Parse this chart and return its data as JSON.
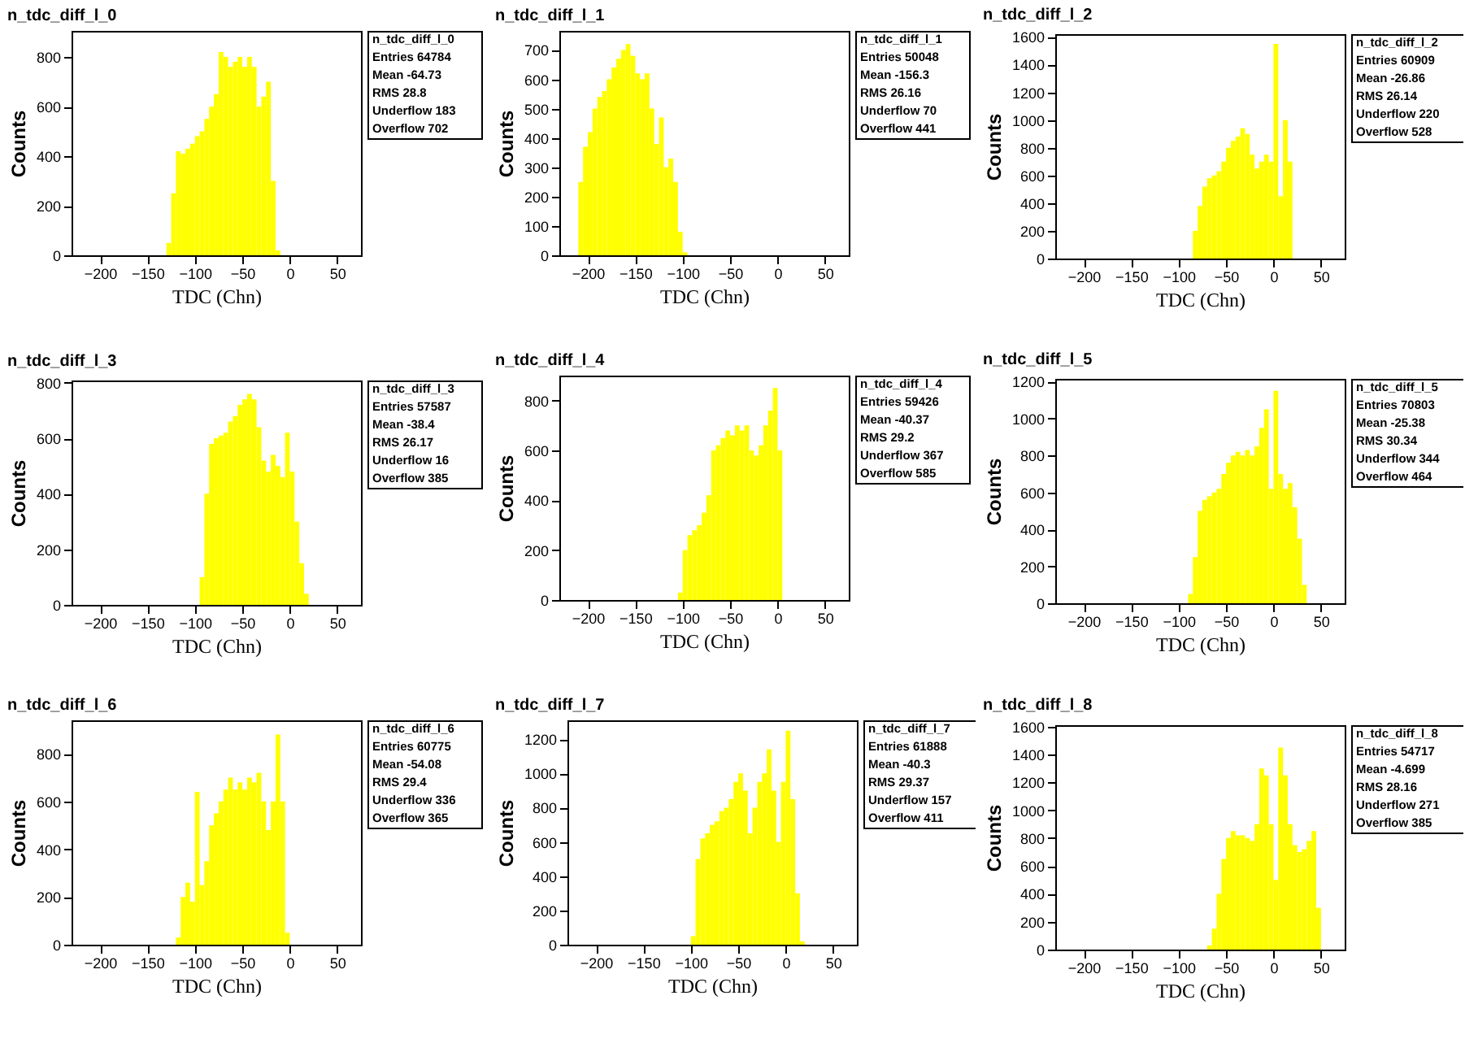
{
  "chart_data": [
    {
      "type": "histogram",
      "title": "n_tdc_diff_l_0",
      "xlabel": "TDC (Chn)",
      "ylabel": "Counts",
      "color": "#ffff00",
      "xlim": [
        -230,
        75
      ],
      "xticks": [
        -200,
        -150,
        -100,
        -50,
        0,
        50
      ],
      "ylim": [
        0,
        905
      ],
      "yticks": [
        0,
        200,
        400,
        600,
        800
      ],
      "grid": false,
      "bins": [
        -230,
        -225,
        -220,
        -215,
        -210,
        -205,
        -200,
        -195,
        -190,
        -185,
        -180,
        -175,
        -170,
        -165,
        -160,
        -155,
        -150,
        -145,
        -140,
        -135,
        -130,
        -125,
        -120,
        -115,
        -110,
        -105,
        -100,
        -95,
        -90,
        -85,
        -80,
        -75,
        -70,
        -65,
        -60,
        -55,
        -50,
        -45,
        -40,
        -35,
        -30,
        -25,
        -20,
        -15,
        -10,
        -5,
        0,
        5,
        10,
        15,
        20,
        25,
        30,
        35,
        40,
        45,
        50,
        55,
        60,
        65,
        70,
        75
      ],
      "values": [
        0,
        0,
        0,
        0,
        0,
        0,
        0,
        0,
        0,
        0,
        0,
        0,
        0,
        0,
        0,
        0,
        0,
        0,
        0,
        0,
        50,
        250,
        420,
        410,
        430,
        450,
        480,
        500,
        550,
        600,
        650,
        820,
        800,
        760,
        780,
        800,
        760,
        800,
        760,
        600,
        640,
        700,
        300,
        20,
        0,
        0,
        0,
        0,
        0,
        0,
        0,
        0,
        0,
        0,
        0,
        0,
        0,
        0,
        0,
        0,
        0
      ],
      "annotations": [
        "n_tdc_diff_l_0",
        "Entries 64784",
        "Mean -64.73",
        "RMS 28.8",
        "Underflow 183",
        "Overflow 702"
      ]
    },
    {
      "type": "histogram",
      "title": "n_tdc_diff_l_1",
      "xlabel": "TDC (Chn)",
      "ylabel": "Counts",
      "color": "#ffff00",
      "xlim": [
        -230,
        75
      ],
      "xticks": [
        -200,
        -150,
        -100,
        -50,
        0,
        50
      ],
      "ylim": [
        0,
        765
      ],
      "yticks": [
        0,
        100,
        200,
        300,
        400,
        500,
        600,
        700
      ],
      "grid": false,
      "bins": [
        -230,
        -225,
        -220,
        -215,
        -210,
        -205,
        -200,
        -195,
        -190,
        -185,
        -180,
        -175,
        -170,
        -165,
        -160,
        -155,
        -150,
        -145,
        -140,
        -135,
        -130,
        -125,
        -120,
        -115,
        -110,
        -105,
        -100,
        -95,
        -90,
        -85,
        -80,
        -75,
        -70,
        -65,
        -60,
        -55,
        -50,
        -45,
        -40,
        -35,
        -30,
        -25,
        -20,
        -15,
        -10,
        -5,
        0,
        5,
        10,
        15,
        20,
        25,
        30,
        35,
        40,
        45,
        50,
        55,
        60,
        65,
        70,
        75
      ],
      "values": [
        0,
        0,
        0,
        0,
        250,
        370,
        420,
        500,
        540,
        560,
        600,
        640,
        670,
        700,
        720,
        680,
        620,
        600,
        620,
        500,
        380,
        470,
        300,
        330,
        250,
        80,
        10,
        0,
        0,
        0,
        0,
        0,
        0,
        0,
        0,
        0,
        0,
        0,
        0,
        0,
        0,
        0,
        0,
        0,
        0,
        0,
        0,
        0,
        0,
        0,
        0,
        0,
        0,
        0,
        0,
        0,
        0,
        0,
        0,
        0,
        0
      ],
      "annotations": [
        "n_tdc_diff_l_1",
        "Entries 50048",
        "Mean -156.3",
        "RMS 26.16",
        "Underflow 70",
        "Overflow 441"
      ]
    },
    {
      "type": "histogram",
      "title": "n_tdc_diff_l_2",
      "xlabel": "TDC (Chn)",
      "ylabel": "Counts",
      "color": "#ffff00",
      "xlim": [
        -230,
        75
      ],
      "xticks": [
        -200,
        -150,
        -100,
        -50,
        0,
        50
      ],
      "ylim": [
        0,
        1620
      ],
      "yticks": [
        0,
        200,
        400,
        600,
        800,
        1000,
        1200,
        1400,
        1600
      ],
      "grid": false,
      "bins": [
        -230,
        -225,
        -220,
        -215,
        -210,
        -205,
        -200,
        -195,
        -190,
        -185,
        -180,
        -175,
        -170,
        -165,
        -160,
        -155,
        -150,
        -145,
        -140,
        -135,
        -130,
        -125,
        -120,
        -115,
        -110,
        -105,
        -100,
        -95,
        -90,
        -85,
        -80,
        -75,
        -70,
        -65,
        -60,
        -55,
        -50,
        -45,
        -40,
        -35,
        -30,
        -25,
        -20,
        -15,
        -10,
        -5,
        0,
        5,
        10,
        15,
        20,
        25,
        30,
        35,
        40,
        45,
        50,
        55,
        60,
        65,
        70,
        75
      ],
      "values": [
        0,
        0,
        0,
        0,
        0,
        0,
        0,
        0,
        0,
        0,
        0,
        0,
        0,
        0,
        0,
        0,
        0,
        0,
        0,
        0,
        0,
        0,
        0,
        0,
        0,
        0,
        0,
        0,
        0,
        200,
        380,
        520,
        580,
        600,
        630,
        700,
        800,
        850,
        880,
        940,
        900,
        750,
        650,
        700,
        750,
        700,
        1550,
        450,
        1000,
        700,
        0,
        0,
        0,
        0,
        0,
        0,
        0,
        0,
        0,
        0,
        0
      ],
      "annotations": [
        "n_tdc_diff_l_2",
        "Entries 60909",
        "Mean -26.86",
        "RMS 26.14",
        "Underflow 220",
        "Overflow 528"
      ]
    },
    {
      "type": "histogram",
      "title": "n_tdc_diff_l_3",
      "xlabel": "TDC (Chn)",
      "ylabel": "Counts",
      "color": "#ffff00",
      "xlim": [
        -230,
        75
      ],
      "xticks": [
        -200,
        -150,
        -100,
        -50,
        0,
        50
      ],
      "ylim": [
        0,
        808
      ],
      "yticks": [
        0,
        200,
        400,
        600,
        800
      ],
      "grid": false,
      "bins": [
        -230,
        -225,
        -220,
        -215,
        -210,
        -205,
        -200,
        -195,
        -190,
        -185,
        -180,
        -175,
        -170,
        -165,
        -160,
        -155,
        -150,
        -145,
        -140,
        -135,
        -130,
        -125,
        -120,
        -115,
        -110,
        -105,
        -100,
        -95,
        -90,
        -85,
        -80,
        -75,
        -70,
        -65,
        -60,
        -55,
        -50,
        -45,
        -40,
        -35,
        -30,
        -25,
        -20,
        -15,
        -10,
        -5,
        0,
        5,
        10,
        15,
        20,
        25,
        30,
        35,
        40,
        45,
        50,
        55,
        60,
        65,
        70,
        75
      ],
      "values": [
        0,
        0,
        0,
        0,
        0,
        0,
        0,
        0,
        0,
        0,
        0,
        0,
        0,
        0,
        0,
        0,
        0,
        0,
        0,
        0,
        0,
        0,
        0,
        0,
        0,
        0,
        0,
        100,
        400,
        580,
        600,
        610,
        620,
        660,
        680,
        720,
        740,
        760,
        740,
        640,
        520,
        480,
        540,
        500,
        460,
        620,
        480,
        300,
        150,
        40,
        0,
        0,
        0,
        0,
        0,
        0,
        0,
        0,
        0,
        0,
        0
      ],
      "annotations": [
        "n_tdc_diff_l_3",
        "Entries 57587",
        "Mean -38.4",
        "RMS 26.17",
        "Underflow 16",
        "Overflow 385"
      ]
    },
    {
      "type": "histogram",
      "title": "n_tdc_diff_l_4",
      "xlabel": "TDC (Chn)",
      "ylabel": "Counts",
      "color": "#ffff00",
      "xlim": [
        -230,
        75
      ],
      "xticks": [
        -200,
        -150,
        -100,
        -50,
        0,
        50
      ],
      "ylim": [
        0,
        900
      ],
      "yticks": [
        0,
        200,
        400,
        600,
        800
      ],
      "grid": false,
      "bins": [
        -230,
        -225,
        -220,
        -215,
        -210,
        -205,
        -200,
        -195,
        -190,
        -185,
        -180,
        -175,
        -170,
        -165,
        -160,
        -155,
        -150,
        -145,
        -140,
        -135,
        -130,
        -125,
        -120,
        -115,
        -110,
        -105,
        -100,
        -95,
        -90,
        -85,
        -80,
        -75,
        -70,
        -65,
        -60,
        -55,
        -50,
        -45,
        -40,
        -35,
        -30,
        -25,
        -20,
        -15,
        -10,
        -5,
        0,
        5,
        10,
        15,
        20,
        25,
        30,
        35,
        40,
        45,
        50,
        55,
        60,
        65,
        70,
        75
      ],
      "values": [
        0,
        0,
        0,
        0,
        0,
        0,
        0,
        0,
        0,
        0,
        0,
        0,
        0,
        0,
        0,
        0,
        0,
        0,
        0,
        0,
        0,
        0,
        0,
        0,
        0,
        30,
        200,
        260,
        280,
        300,
        350,
        420,
        600,
        620,
        650,
        680,
        660,
        700,
        680,
        700,
        600,
        580,
        620,
        700,
        760,
        850,
        600,
        0,
        0,
        0,
        0,
        0,
        0,
        0,
        0,
        0,
        0,
        0,
        0,
        0,
        0
      ],
      "annotations": [
        "n_tdc_diff_l_4",
        "Entries 59426",
        "Mean -40.37",
        "RMS 29.2",
        "Underflow 367",
        "Overflow 585"
      ]
    },
    {
      "type": "histogram",
      "title": "n_tdc_diff_l_5",
      "xlabel": "TDC (Chn)",
      "ylabel": "Counts",
      "color": "#ffff00",
      "xlim": [
        -230,
        75
      ],
      "xticks": [
        -200,
        -150,
        -100,
        -50,
        0,
        50
      ],
      "ylim": [
        0,
        1215
      ],
      "yticks": [
        0,
        200,
        400,
        600,
        800,
        1000,
        1200
      ],
      "grid": false,
      "bins": [
        -230,
        -225,
        -220,
        -215,
        -210,
        -205,
        -200,
        -195,
        -190,
        -185,
        -180,
        -175,
        -170,
        -165,
        -160,
        -155,
        -150,
        -145,
        -140,
        -135,
        -130,
        -125,
        -120,
        -115,
        -110,
        -105,
        -100,
        -95,
        -90,
        -85,
        -80,
        -75,
        -70,
        -65,
        -60,
        -55,
        -50,
        -45,
        -40,
        -35,
        -30,
        -25,
        -20,
        -15,
        -10,
        -5,
        0,
        5,
        10,
        15,
        20,
        25,
        30,
        35,
        40,
        45,
        50,
        55,
        60,
        65,
        70,
        75
      ],
      "values": [
        0,
        0,
        0,
        0,
        0,
        0,
        0,
        0,
        0,
        0,
        0,
        0,
        0,
        0,
        0,
        0,
        0,
        0,
        0,
        0,
        0,
        0,
        0,
        0,
        0,
        0,
        0,
        0,
        50,
        250,
        500,
        560,
        580,
        600,
        620,
        700,
        760,
        800,
        820,
        800,
        830,
        800,
        850,
        950,
        1050,
        620,
        1150,
        700,
        620,
        650,
        520,
        350,
        100,
        0,
        0,
        0,
        0,
        0,
        0,
        0,
        0
      ],
      "annotations": [
        "n_tdc_diff_l_5",
        "Entries 70803",
        "Mean -25.38",
        "RMS 30.34",
        "Underflow 344",
        "Overflow 464"
      ]
    },
    {
      "type": "histogram",
      "title": "n_tdc_diff_l_6",
      "xlabel": "TDC (Chn)",
      "ylabel": "Counts",
      "color": "#ffff00",
      "xlim": [
        -230,
        75
      ],
      "xticks": [
        -200,
        -150,
        -100,
        -50,
        0,
        50
      ],
      "ylim": [
        0,
        940
      ],
      "yticks": [
        0,
        200,
        400,
        600,
        800
      ],
      "grid": false,
      "bins": [
        -230,
        -225,
        -220,
        -215,
        -210,
        -205,
        -200,
        -195,
        -190,
        -185,
        -180,
        -175,
        -170,
        -165,
        -160,
        -155,
        -150,
        -145,
        -140,
        -135,
        -130,
        -125,
        -120,
        -115,
        -110,
        -105,
        -100,
        -95,
        -90,
        -85,
        -80,
        -75,
        -70,
        -65,
        -60,
        -55,
        -50,
        -45,
        -40,
        -35,
        -30,
        -25,
        -20,
        -15,
        -10,
        -5,
        0,
        5,
        10,
        15,
        20,
        25,
        30,
        35,
        40,
        45,
        50,
        55,
        60,
        65,
        70,
        75
      ],
      "values": [
        0,
        0,
        0,
        0,
        0,
        0,
        0,
        0,
        0,
        0,
        0,
        0,
        0,
        0,
        0,
        0,
        0,
        0,
        0,
        0,
        0,
        0,
        30,
        200,
        260,
        180,
        640,
        250,
        350,
        500,
        550,
        600,
        650,
        700,
        650,
        680,
        650,
        700,
        680,
        720,
        600,
        480,
        600,
        880,
        600,
        50,
        0,
        0,
        0,
        0,
        0,
        0,
        0,
        0,
        0,
        0,
        0,
        0,
        0,
        0,
        0
      ],
      "annotations": [
        "n_tdc_diff_l_6",
        "Entries 60775",
        "Mean -54.08",
        "RMS 29.4",
        "Underflow 336",
        "Overflow 365"
      ]
    },
    {
      "type": "histogram",
      "title": "n_tdc_diff_l_7",
      "xlabel": "TDC (Chn)",
      "ylabel": "Counts",
      "color": "#ffff00",
      "xlim": [
        -230,
        75
      ],
      "xticks": [
        -200,
        -150,
        -100,
        -50,
        0,
        50
      ],
      "ylim": [
        0,
        1310
      ],
      "yticks": [
        0,
        200,
        400,
        600,
        800,
        1000,
        1200
      ],
      "grid": false,
      "bins": [
        -230,
        -225,
        -220,
        -215,
        -210,
        -205,
        -200,
        -195,
        -190,
        -185,
        -180,
        -175,
        -170,
        -165,
        -160,
        -155,
        -150,
        -145,
        -140,
        -135,
        -130,
        -125,
        -120,
        -115,
        -110,
        -105,
        -100,
        -95,
        -90,
        -85,
        -80,
        -75,
        -70,
        -65,
        -60,
        -55,
        -50,
        -45,
        -40,
        -35,
        -30,
        -25,
        -20,
        -15,
        -10,
        -5,
        0,
        5,
        10,
        15,
        20,
        25,
        30,
        35,
        40,
        45,
        50,
        55,
        60,
        65,
        70,
        75
      ],
      "values": [
        0,
        0,
        0,
        0,
        0,
        0,
        0,
        0,
        0,
        0,
        0,
        0,
        0,
        0,
        0,
        0,
        0,
        0,
        0,
        0,
        0,
        0,
        0,
        0,
        0,
        0,
        50,
        500,
        620,
        650,
        700,
        720,
        780,
        800,
        850,
        950,
        1000,
        900,
        650,
        800,
        950,
        1000,
        1140,
        900,
        600,
        950,
        1250,
        850,
        300,
        20,
        0,
        0,
        0,
        0,
        0,
        0,
        0,
        0,
        0,
        0,
        0
      ],
      "annotations": [
        "n_tdc_diff_l_7",
        "Entries 61888",
        "Mean -40.3",
        "RMS 29.37",
        "Underflow 157",
        "Overflow 411"
      ]
    },
    {
      "type": "histogram",
      "title": "n_tdc_diff_l_8",
      "xlabel": "TDC (Chn)",
      "ylabel": "Counts",
      "color": "#ffff00",
      "xlim": [
        -230,
        75
      ],
      "xticks": [
        -200,
        -150,
        -100,
        -50,
        0,
        50
      ],
      "ylim": [
        0,
        1610
      ],
      "yticks": [
        0,
        200,
        400,
        600,
        800,
        1000,
        1200,
        1400,
        1600
      ],
      "grid": false,
      "bins": [
        -230,
        -225,
        -220,
        -215,
        -210,
        -205,
        -200,
        -195,
        -190,
        -185,
        -180,
        -175,
        -170,
        -165,
        -160,
        -155,
        -150,
        -145,
        -140,
        -135,
        -130,
        -125,
        -120,
        -115,
        -110,
        -105,
        -100,
        -95,
        -90,
        -85,
        -80,
        -75,
        -70,
        -65,
        -60,
        -55,
        -50,
        -45,
        -40,
        -35,
        -30,
        -25,
        -20,
        -15,
        -10,
        -5,
        0,
        5,
        10,
        15,
        20,
        25,
        30,
        35,
        40,
        45,
        50,
        55,
        60,
        65,
        70,
        75
      ],
      "values": [
        0,
        0,
        0,
        0,
        0,
        0,
        0,
        0,
        0,
        0,
        0,
        0,
        0,
        0,
        0,
        0,
        0,
        0,
        0,
        0,
        0,
        0,
        0,
        0,
        0,
        0,
        0,
        0,
        0,
        0,
        0,
        0,
        30,
        150,
        400,
        650,
        800,
        850,
        820,
        820,
        800,
        780,
        900,
        1300,
        1250,
        900,
        500,
        1450,
        1250,
        900,
        750,
        700,
        720,
        780,
        850,
        300,
        0,
        0,
        0,
        0,
        0
      ],
      "annotations": [
        "n_tdc_diff_l_8",
        "Entries 54717",
        "Mean -4.699",
        "RMS 28.16",
        "Underflow 271",
        "Overflow 385"
      ]
    }
  ]
}
